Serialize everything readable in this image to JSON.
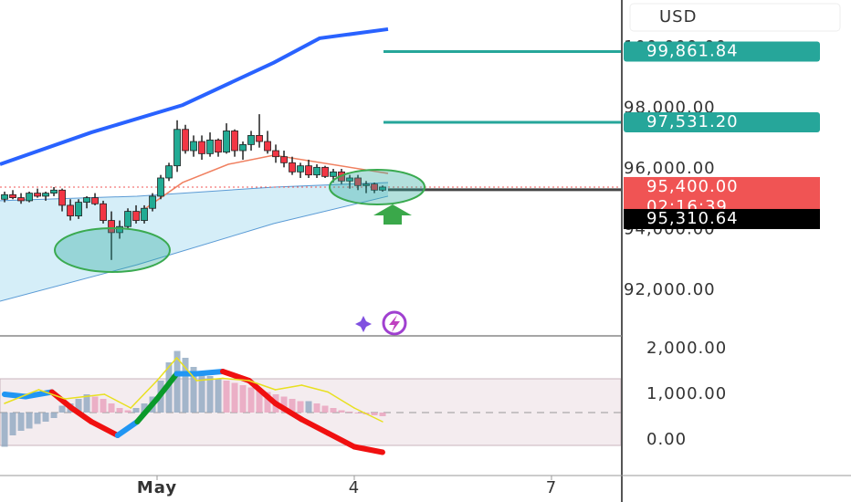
{
  "chart_data": [
    {
      "type": "candlestick",
      "currency": "USD",
      "x": [
        -1.319,
        -1.194,
        -1.069,
        -0.944,
        -0.819,
        -0.694,
        -0.569,
        -0.444,
        -0.319,
        -0.194,
        -0.069,
        0.056,
        0.181,
        0.306,
        0.431,
        0.556,
        0.681,
        0.806,
        0.931,
        1.056,
        1.181,
        1.306,
        1.431,
        1.556,
        1.681,
        1.806,
        1.931,
        2.056,
        2.181,
        2.306,
        2.431,
        2.556,
        2.681,
        2.806,
        2.931,
        3.056,
        3.181,
        3.306,
        3.431,
        3.556,
        3.681,
        3.806,
        3.931,
        4.056,
        4.181,
        4.306,
        4.431
      ],
      "open": [
        95000,
        95150,
        95050,
        94950,
        95200,
        95100,
        95200,
        95300,
        94800,
        94450,
        94900,
        95050,
        94850,
        94300,
        93900,
        94100,
        94600,
        94300,
        94700,
        95100,
        95700,
        96100,
        97300,
        96600,
        96900,
        96500,
        96950,
        96550,
        97250,
        96600,
        96800,
        97100,
        96900,
        96600,
        96400,
        96200,
        95900,
        96100,
        95800,
        96050,
        95750,
        95900,
        95600,
        95700,
        95450,
        95500,
        95300
      ],
      "high": [
        95250,
        95300,
        95200,
        95250,
        95350,
        95250,
        95400,
        95350,
        95000,
        95000,
        95100,
        95200,
        94950,
        94600,
        94300,
        94700,
        94800,
        94800,
        95200,
        95800,
        96200,
        97600,
        97450,
        97100,
        97100,
        97200,
        97000,
        97500,
        97300,
        96900,
        97250,
        97800,
        97250,
        96800,
        96600,
        96400,
        96200,
        96300,
        96150,
        96100,
        96000,
        96000,
        95800,
        95800,
        95600,
        95550,
        95450
      ],
      "low": [
        94900,
        95000,
        94850,
        94900,
        95050,
        94950,
        95100,
        94600,
        94300,
        94350,
        94700,
        94800,
        94200,
        93000,
        93700,
        94000,
        94200,
        94200,
        94600,
        95000,
        95600,
        95900,
        96500,
        96400,
        96300,
        96400,
        96400,
        96500,
        96400,
        96300,
        96600,
        96700,
        96500,
        96200,
        96050,
        95800,
        95700,
        95700,
        95700,
        95700,
        95550,
        95500,
        95350,
        95300,
        95200,
        95200,
        95250
      ],
      "close": [
        95150,
        95050,
        94950,
        95200,
        95100,
        95200,
        95300,
        94800,
        94450,
        94900,
        95050,
        94850,
        94300,
        93900,
        94100,
        94600,
        94300,
        94700,
        95100,
        95700,
        96100,
        97300,
        96600,
        96900,
        96500,
        96950,
        96550,
        97250,
        96600,
        96800,
        97100,
        96900,
        96600,
        96400,
        96200,
        95900,
        96100,
        95800,
        96050,
        95750,
        95900,
        95600,
        95700,
        95450,
        95500,
        95300,
        95400
      ],
      "up_color": "#22ab94",
      "down_color": "#f23645",
      "xlim": [
        -1.389,
        8.056
      ],
      "ylim": [
        90500,
        101560
      ],
      "xticks": [
        {
          "value": 1,
          "label": "May"
        },
        {
          "value": 4,
          "label": "4"
        },
        {
          "value": 7,
          "label": "7"
        }
      ],
      "yticks": [
        {
          "value": 92000,
          "label": "92,000.00"
        },
        {
          "value": 94000,
          "label": "94,000.00"
        },
        {
          "value": 96000,
          "label": "96,000.00"
        },
        {
          "value": 98000,
          "label": "98,000.00"
        },
        {
          "value": 100000,
          "label": "100,000.00"
        }
      ],
      "overlays": [
        {
          "color": "#2962ff",
          "width": 4,
          "x": [
            -1.389,
            0,
            1.389,
            2.778,
            3.472,
            4.514
          ],
          "values": [
            96150,
            97200,
            98100,
            99500,
            100300,
            100600
          ]
        },
        {
          "color": "#f08060",
          "width": 1.5,
          "x": [
            0.694,
            1.389,
            2.083,
            2.778,
            4.514
          ],
          "values": [
            94500,
            95550,
            96150,
            96450,
            95850
          ]
        }
      ],
      "channel": {
        "color": "#5b9bd5",
        "fill": "#b3e0f2",
        "x": [
          -1.389,
          0.694,
          2.778,
          4.514
        ],
        "upper": [
          94950,
          95100,
          95400,
          95550
        ],
        "lower": [
          91640,
          92840,
          94200,
          95100
        ]
      },
      "levels": [
        {
          "value": 99861.84,
          "label": "99,861.84",
          "color": "#26a69a"
        },
        {
          "value": 97531.2,
          "label": "97,531.20",
          "color": "#26a69a"
        }
      ],
      "last_price": {
        "value": 95400,
        "label": "95,400.00",
        "countdown": "02:16:39",
        "color": "#f05454"
      },
      "mark_price": {
        "value": 95310.64,
        "label": "95,310.64",
        "color": "#000000"
      }
    },
    {
      "type": "bar",
      "x": [
        -1.319,
        -1.194,
        -1.069,
        -0.944,
        -0.819,
        -0.694,
        -0.569,
        -0.444,
        -0.319,
        -0.194,
        -0.069,
        0.056,
        0.181,
        0.306,
        0.431,
        0.556,
        0.681,
        0.806,
        0.931,
        1.056,
        1.181,
        1.306,
        1.431,
        1.556,
        1.681,
        1.806,
        1.931,
        2.056,
        2.181,
        2.306,
        2.431,
        2.556,
        2.681,
        2.806,
        2.931,
        3.056,
        3.181,
        3.306,
        3.431,
        3.556,
        3.681,
        3.806,
        3.931,
        4.056,
        4.181,
        4.306,
        4.431
      ],
      "values": [
        -150,
        100,
        200,
        250,
        350,
        400,
        480,
        750,
        800,
        900,
        1000,
        950,
        900,
        800,
        700,
        650,
        700,
        800,
        950,
        1300,
        1700,
        1950,
        1800,
        1600,
        1500,
        1400,
        1350,
        1300,
        1250,
        1200,
        1150,
        1100,
        1050,
        1000,
        950,
        900,
        850,
        850,
        800,
        750,
        700,
        650,
        620,
        580,
        560,
        540,
        520
      ],
      "baseline": 600,
      "band": [
        -120,
        1340
      ],
      "bar_color": "#8fa8c0",
      "falling_color": "#e8a0bc",
      "xlim": [
        -1.389,
        8.056
      ],
      "ylim": [
        -760,
        2240
      ],
      "yticks": [
        {
          "value": 2000,
          "label": "2,000.00"
        },
        {
          "value": 1000,
          "label": "1,000.00"
        },
        {
          "value": 0,
          "label": "0.00"
        }
      ],
      "lines": [
        {
          "color": "#2196f3",
          "down_color": "#f01010",
          "up_color": "#0a9a2a",
          "width": 6,
          "x": [
            -1.32,
            -1.0,
            -0.6,
            -0.3,
            0.0,
            0.4,
            0.7,
            1.0,
            1.3,
            1.6,
            2.0,
            2.4,
            2.8,
            3.2,
            3.6,
            4.0,
            4.43
          ],
          "values": [
            1000,
            950,
            1050,
            700,
            400,
            100,
            400,
            900,
            1450,
            1450,
            1500,
            1300,
            800,
            450,
            150,
            -150,
            -270
          ]
        },
        {
          "color": "#e8e020",
          "width": 1.5,
          "x": [
            -1.32,
            -0.8,
            -0.4,
            0.2,
            0.6,
            1.0,
            1.3,
            1.6,
            2.0,
            2.4,
            2.8,
            3.2,
            3.6,
            4.0,
            4.43
          ],
          "values": [
            800,
            1100,
            900,
            1000,
            700,
            1300,
            1800,
            1300,
            1350,
            1300,
            1100,
            1200,
            1050,
            700,
            400
          ]
        }
      ]
    }
  ]
}
